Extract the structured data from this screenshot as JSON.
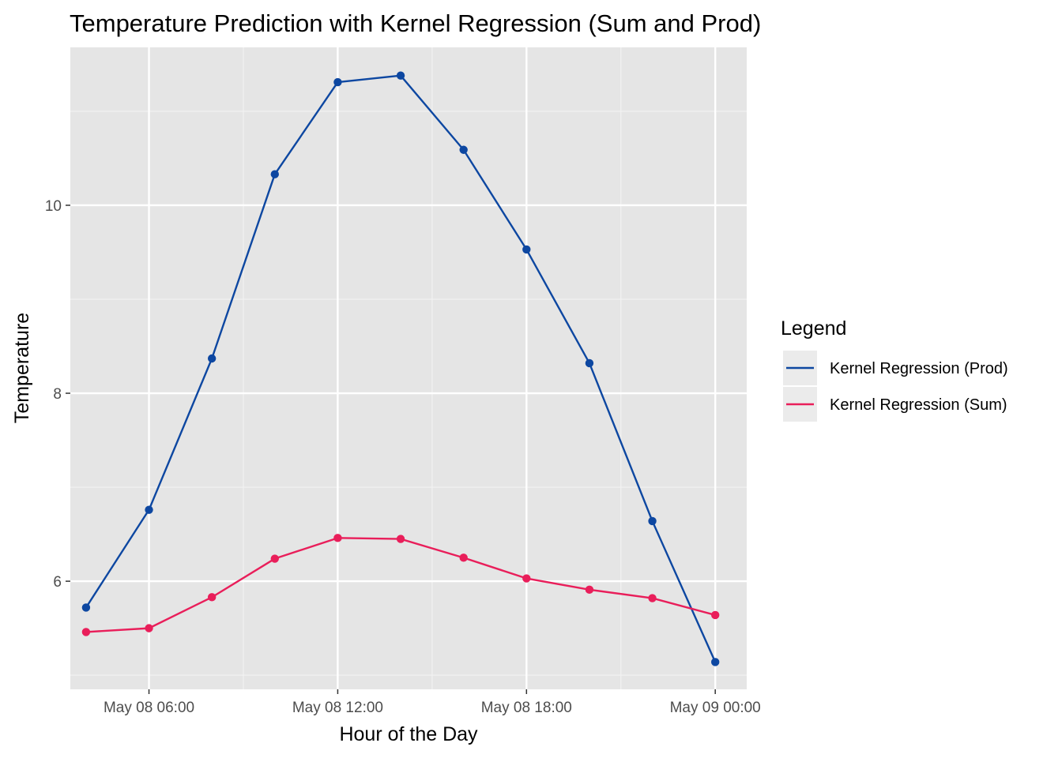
{
  "chart_data": {
    "type": "line",
    "title": "Temperature Prediction with Kernel Regression (Sum and Prod)",
    "xlabel": "Hour of the Day",
    "ylabel": "Temperature",
    "x_type": "datetime",
    "x": [
      "2024-05-08T04:00",
      "2024-05-08T06:00",
      "2024-05-08T08:00",
      "2024-05-08T10:00",
      "2024-05-08T12:00",
      "2024-05-08T14:00",
      "2024-05-08T16:00",
      "2024-05-08T18:00",
      "2024-05-08T20:00",
      "2024-05-08T22:00",
      "2024-05-09T00:00"
    ],
    "xlim": [
      "2024-05-08T03:30",
      "2024-05-09T01:00"
    ],
    "x_ticks": [
      {
        "value": "2024-05-08T06:00",
        "label": "May 08 06:00"
      },
      {
        "value": "2024-05-08T12:00",
        "label": "May 08 12:00"
      },
      {
        "value": "2024-05-08T18:00",
        "label": "May 08 18:00"
      },
      {
        "value": "2024-05-09T00:00",
        "label": "May 09 00:00"
      }
    ],
    "x_minor_ticks": [
      "2024-05-08T09:00",
      "2024-05-08T15:00",
      "2024-05-08T21:00"
    ],
    "ylim": [
      4.85,
      11.68
    ],
    "y_ticks": [
      6,
      8,
      10
    ],
    "y_minor_ticks": [
      5,
      7,
      9,
      11
    ],
    "grid": true,
    "legend": {
      "title": "Legend",
      "position": "right",
      "entries": [
        "Kernel Regression (Prod)",
        "Kernel Regression (Sum)"
      ]
    },
    "series": [
      {
        "name": "Kernel Regression (Prod)",
        "color": "#0d47a1",
        "values": [
          5.72,
          6.76,
          8.37,
          10.33,
          11.31,
          11.38,
          10.59,
          9.53,
          8.32,
          6.64,
          5.14
        ]
      },
      {
        "name": "Kernel Regression (Sum)",
        "color": "#e91e5a",
        "values": [
          5.46,
          5.5,
          5.83,
          6.24,
          6.46,
          6.45,
          6.25,
          6.03,
          5.91,
          5.82,
          5.64
        ]
      }
    ]
  },
  "colors": {
    "panel_background": "#e5e5e5",
    "grid_major": "#ffffff",
    "grid_minor": "#f2f2f2",
    "legend_key_background": "#ebebeb"
  }
}
